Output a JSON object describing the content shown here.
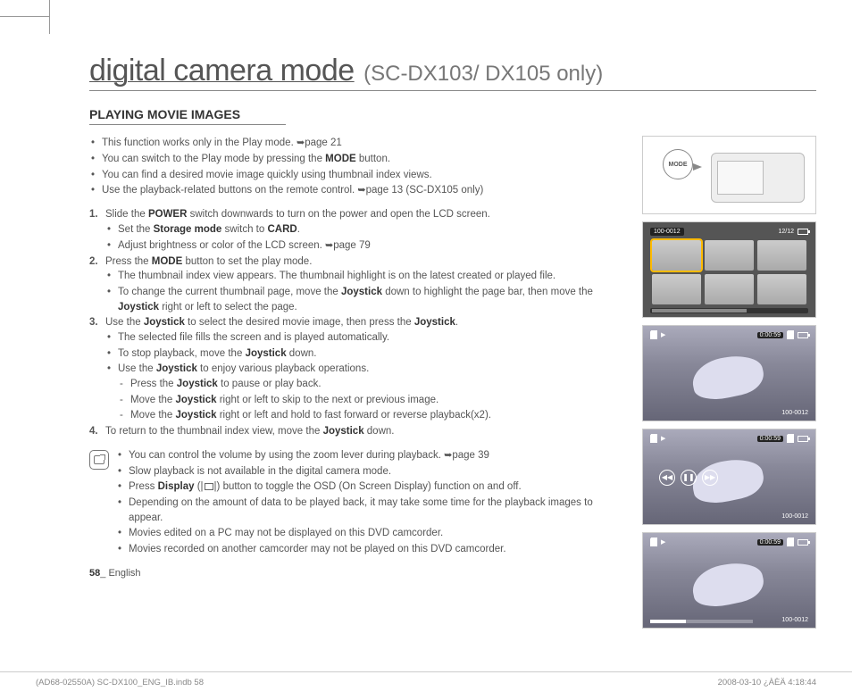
{
  "title": {
    "main": "digital camera mode",
    "sub": "(SC-DX103/ DX105 only)"
  },
  "section_heading": "PLAYING MOVIE IMAGES",
  "intro": {
    "i1a": "This function works only in the Play mode. ",
    "i1b": "page 21",
    "i2a": "You can switch to the Play mode by pressing the ",
    "i2b": "MODE",
    "i2c": " button.",
    "i3": "You can find a desired movie image quickly using thumbnail index views.",
    "i4a": "Use the playback-related buttons on the remote control. ",
    "i4b": "page 13 (SC-DX105 only)"
  },
  "steps": {
    "s1a": "Slide the ",
    "s1b": "POWER",
    "s1c": " switch downwards to turn on the power and open the LCD screen.",
    "s1_1a": "Set the ",
    "s1_1b": "Storage mode",
    "s1_1c": " switch to ",
    "s1_1d": "CARD",
    "s1_1e": ".",
    "s1_2a": "Adjust brightness or color of the LCD screen. ",
    "s1_2b": "page 79",
    "s2a": "Press the ",
    "s2b": "MODE",
    "s2c": " button to set the play mode.",
    "s2_1": "The thumbnail index view appears. The thumbnail highlight is on the latest created or played file.",
    "s2_2a": "To change the current thumbnail page, move the ",
    "s2_2b": "Joystick",
    "s2_2c": " down to highlight the page bar, then move the ",
    "s2_2d": "Joystick",
    "s2_2e": " right or left to select the page.",
    "s3a": "Use the ",
    "s3b": "Joystick",
    "s3c": " to select the desired movie image, then press the ",
    "s3d": "Joystick",
    "s3e": ".",
    "s3_1": "The selected file fills the screen and is played automatically.",
    "s3_2a": "To stop playback, move the ",
    "s3_2b": "Joystick",
    "s3_2c": " down.",
    "s3_3a": "Use the ",
    "s3_3b": "Joystick",
    "s3_3c": " to enjoy various playback operations.",
    "s3_3d1a": "Press the ",
    "s3_3d1b": "Joystick",
    "s3_3d1c": " to pause or play back.",
    "s3_3d2a": "Move the ",
    "s3_3d2b": "Joystick",
    "s3_3d2c": " right or left to skip to the next or previous image.",
    "s3_3d3a": "Move the ",
    "s3_3d3b": "Joystick",
    "s3_3d3c": " right or left and hold to fast forward or reverse playback(x2).",
    "s4a": "To return to the thumbnail index view, move the ",
    "s4b": "Joystick",
    "s4c": " down."
  },
  "notes": {
    "n1a": "You can control the volume by using the zoom lever during playback. ",
    "n1b": "page 39",
    "n2": "Slow playback is not available in the digital camera mode.",
    "n3a": "Press ",
    "n3b": "Display",
    "n3c": " (",
    "n3d": ") button to toggle the OSD (On Screen Display) function on and off.",
    "n4": "Depending on the amount of data to be played back, it may take some time for the playback images to appear.",
    "n5": "Movies edited on a PC may not be displayed on this DVD camcorder.",
    "n6": "Movies recorded on another camcorder may not be played on this DVD camcorder."
  },
  "page_num": {
    "num": "58",
    "sep": "_ ",
    "lang": "English"
  },
  "side": {
    "mode_label": "MODE",
    "thumb_file": "100-0012",
    "thumb_count": "12/12",
    "timecode": "0:00:59",
    "file_bot": "100-0012"
  },
  "footer": {
    "left": "(AD68-02550A) SC-DX100_ENG_IB.indb   58",
    "right": "2008-03-10   ¿ÀÈÄ 4:18:44"
  },
  "glyph": {
    "arrow": "➥",
    "pipe": "|",
    "play": "▶",
    "prev": "◀◀",
    "pause": "❚❚",
    "next": "▶▶"
  }
}
